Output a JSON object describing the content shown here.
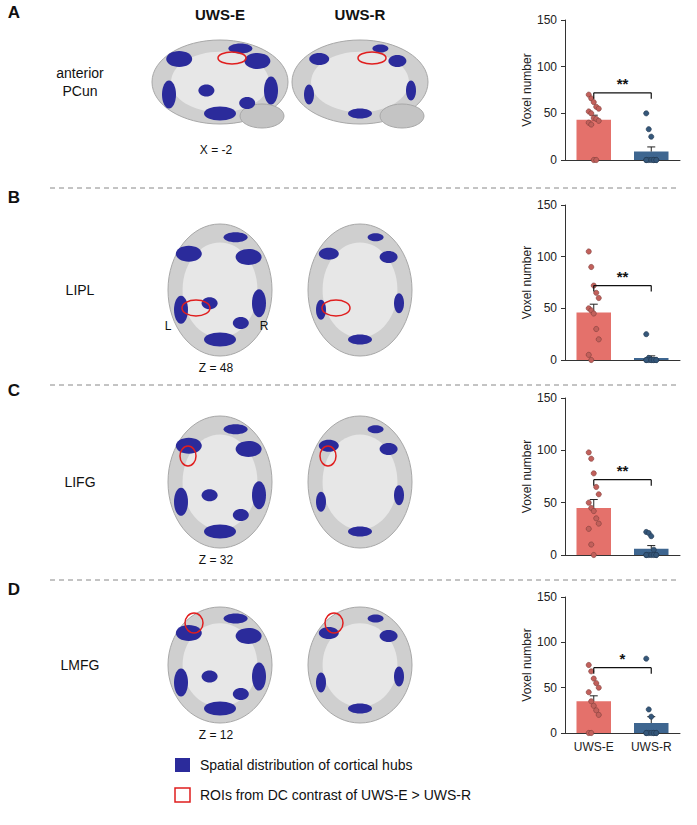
{
  "columns": [
    "UWS-E",
    "UWS-R"
  ],
  "panels": [
    {
      "label": "A",
      "region": "anterior\nPCun",
      "slice": "X = -2"
    },
    {
      "label": "B",
      "region": "LIPL",
      "slice": "Z = 48",
      "sides": [
        "L",
        "R"
      ]
    },
    {
      "label": "C",
      "region": "LIFG",
      "slice": "Z = 32"
    },
    {
      "label": "D",
      "region": "LMFG",
      "slice": "Z = 12"
    }
  ],
  "legend_items": [
    {
      "label": "Spatial distribution of cortical hubs",
      "color": "#2b2b9b"
    },
    {
      "label": "ROIs from DC contrast of UWS-E > UWS-R",
      "color": "#e01e1e"
    }
  ],
  "chart_data": [
    {
      "type": "bar",
      "categories": [
        "UWS-E",
        "UWS-R"
      ],
      "values": [
        43,
        9
      ],
      "errors": [
        5,
        5
      ],
      "points": [
        [
          70,
          66,
          62,
          57,
          55,
          52,
          50,
          45,
          44,
          42,
          40,
          38,
          0,
          0
        ],
        [
          50,
          33,
          25,
          0,
          0,
          0,
          0,
          0,
          0,
          0,
          0
        ]
      ],
      "colors": [
        "#e4716b",
        "#3e6690"
      ],
      "ylim": [
        0,
        150
      ],
      "yticks": [
        0,
        50,
        100,
        150
      ],
      "y_label": "Voxel number",
      "annotation": "**",
      "tick_labels": "y",
      "grid": false
    },
    {
      "type": "bar",
      "categories": [
        "UWS-E",
        "UWS-R"
      ],
      "values": [
        46,
        2
      ],
      "errors": [
        8,
        2
      ],
      "points": [
        [
          105,
          90,
          72,
          65,
          60,
          50,
          48,
          45,
          30,
          20,
          5,
          0
        ],
        [
          25,
          2,
          0,
          0,
          0,
          0,
          0,
          0,
          0,
          0,
          0
        ]
      ],
      "colors": [
        "#e4716b",
        "#3e6690"
      ],
      "ylim": [
        0,
        150
      ],
      "yticks": [
        0,
        50,
        100,
        150
      ],
      "y_label": "Voxel number",
      "annotation": "**",
      "tick_labels": "y",
      "grid": false
    },
    {
      "type": "bar",
      "categories": [
        "UWS-E",
        "UWS-R"
      ],
      "values": [
        45,
        6
      ],
      "errors": [
        8,
        3
      ],
      "points": [
        [
          98,
          92,
          78,
          65,
          58,
          50,
          45,
          42,
          35,
          30,
          25,
          10,
          0
        ],
        [
          22,
          21,
          18,
          5,
          0,
          0,
          0,
          0,
          0,
          0,
          0
        ]
      ],
      "colors": [
        "#e4716b",
        "#3e6690"
      ],
      "ylim": [
        0,
        150
      ],
      "yticks": [
        0,
        50,
        100,
        150
      ],
      "y_label": "Voxel number",
      "annotation": "**",
      "tick_labels": "y",
      "grid": false
    },
    {
      "type": "bar",
      "categories": [
        "UWS-E",
        "UWS-R"
      ],
      "values": [
        35,
        11
      ],
      "errors": [
        6,
        7
      ],
      "points": [
        [
          75,
          68,
          60,
          55,
          50,
          45,
          35,
          30,
          25,
          20,
          0,
          0
        ],
        [
          82,
          26,
          18,
          0,
          0,
          0,
          0,
          0,
          0,
          0,
          0
        ]
      ],
      "colors": [
        "#e4716b",
        "#3e6690"
      ],
      "ylim": [
        0,
        150
      ],
      "yticks": [
        0,
        50,
        100,
        150
      ],
      "y_label": "Voxel number",
      "annotation": "*",
      "grid": false
    }
  ]
}
